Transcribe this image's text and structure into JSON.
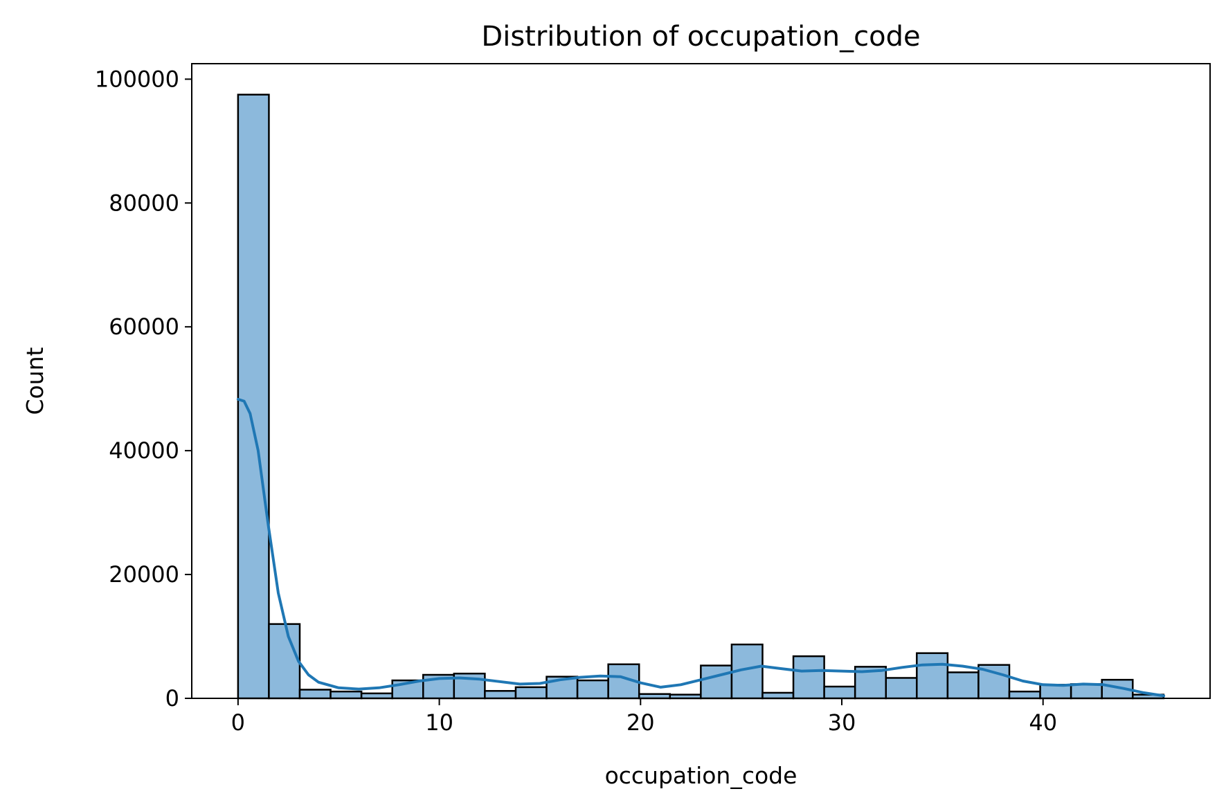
{
  "chart_data": {
    "type": "bar",
    "title": "Distribution of occupation_code",
    "xlabel": "occupation_code",
    "ylabel": "Count",
    "xlim": [
      -2.3,
      48.3
    ],
    "ylim": [
      0,
      102500
    ],
    "x_ticks": [
      0,
      10,
      20,
      30,
      40
    ],
    "y_ticks": [
      0,
      20000,
      40000,
      60000,
      80000,
      100000
    ],
    "grid": false,
    "legend": "none",
    "bin_start": 0,
    "bin_width": 1.533,
    "values": [
      97500,
      12000,
      1400,
      1100,
      800,
      2900,
      3800,
      4000,
      1200,
      1800,
      3500,
      2900,
      5500,
      700,
      600,
      5300,
      8700,
      900,
      6800,
      1900,
      5100,
      3300,
      7300,
      4200,
      5400,
      1100,
      2200,
      2300,
      3000,
      600
    ],
    "kde": {
      "x": [
        0,
        0.3,
        0.6,
        1.0,
        1.5,
        2.0,
        2.5,
        3.0,
        3.5,
        4.0,
        5.0,
        6.0,
        7.0,
        8.0,
        9.0,
        10.0,
        11.0,
        12.0,
        13.0,
        14.0,
        15.0,
        16.0,
        17.0,
        18.0,
        19.0,
        20.0,
        21.0,
        22.0,
        23.0,
        24.0,
        25.0,
        26.0,
        27.0,
        28.0,
        29.0,
        30.0,
        31.0,
        32.0,
        33.0,
        34.0,
        35.0,
        36.0,
        37.0,
        38.0,
        39.0,
        40.0,
        41.0,
        42.0,
        43.0,
        44.0,
        45.0,
        46.0
      ],
      "y": [
        48300,
        48000,
        46000,
        40000,
        28000,
        17000,
        10000,
        6000,
        3800,
        2600,
        1700,
        1500,
        1700,
        2200,
        2800,
        3200,
        3300,
        3100,
        2700,
        2300,
        2400,
        3000,
        3400,
        3600,
        3500,
        2500,
        1800,
        2200,
        3000,
        3800,
        4600,
        5200,
        4800,
        4400,
        4500,
        4400,
        4300,
        4500,
        5000,
        5400,
        5500,
        5200,
        4700,
        3800,
        2800,
        2200,
        2100,
        2300,
        2200,
        1600,
        900,
        400
      ]
    },
    "colors": {
      "bar_fill": "#8cb9dc",
      "bar_edge": "#000000",
      "kde_line": "#1f77b4"
    }
  }
}
